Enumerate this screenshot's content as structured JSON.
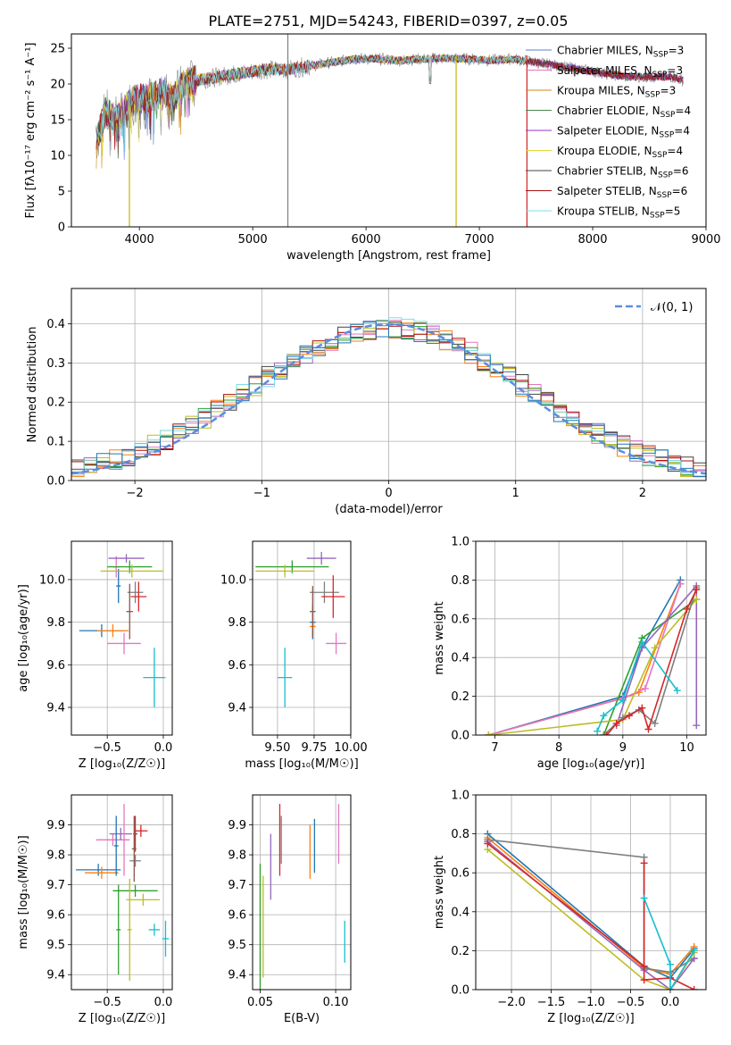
{
  "title": "PLATE=2751, MJD=54243, FIBERID=0397, z=0.05",
  "colors": {
    "blue": "#1f77b4",
    "orange": "#ff7f0e",
    "green": "#2ca02c",
    "red": "#d62728",
    "purple": "#9467bd",
    "brown": "#8c564b",
    "pink": "#e377c2",
    "gray": "#7f7f7f",
    "olive": "#bcbd22",
    "cyan": "#17becf"
  },
  "chart_data": [
    {
      "type": "line",
      "xlabel": "wavelength [Angstrom, rest frame]",
      "ylabel": "Flux [fλ10⁻¹⁷ erg cm⁻² s⁻¹ A⁻¹]",
      "xlim": [
        3400,
        9000
      ],
      "ylim": [
        0,
        27
      ],
      "xticks": [
        "4000",
        "5000",
        "6000",
        "7000",
        "8000",
        "9000"
      ],
      "yticks": [
        "0",
        "5",
        "10",
        "15",
        "20",
        "25"
      ],
      "legend": [
        {
          "text": "Chabrier MILES, N",
          "sub": "SSP",
          "suffix": "=3",
          "color": "#5b7fd6"
        },
        {
          "text": "Salpeter MILES, N",
          "sub": "SSP",
          "suffix": "=3",
          "color": "#e377c2"
        },
        {
          "text": "Kroupa MILES, N",
          "sub": "SSP",
          "suffix": "=3",
          "color": "#d08a15"
        },
        {
          "text": "Chabrier ELODIE, N",
          "sub": "SSP",
          "suffix": "=4",
          "color": "#4a8a4a"
        },
        {
          "text": "Salpeter ELODIE, N",
          "sub": "SSP",
          "suffix": "=4",
          "color": "#9933cc"
        },
        {
          "text": "Kroupa ELODIE, N",
          "sub": "SSP",
          "suffix": "=4",
          "color": "#e0d838"
        },
        {
          "text": "Chabrier STELIB, N",
          "sub": "SSP",
          "suffix": "=6",
          "color": "#444444"
        },
        {
          "text": "Salpeter STELIB, N",
          "sub": "SSP",
          "suffix": "=6",
          "color": "#aa1111"
        },
        {
          "text": "Kroupa STELIB, N",
          "sub": "SSP",
          "suffix": "=5",
          "color": "#80dde6"
        }
      ],
      "spectrum_envelope": [
        [
          3620,
          12
        ],
        [
          3700,
          16
        ],
        [
          3800,
          15
        ],
        [
          3900,
          17
        ],
        [
          4000,
          18
        ],
        [
          4100,
          18
        ],
        [
          4200,
          19
        ],
        [
          4300,
          18
        ],
        [
          4400,
          20
        ],
        [
          4500,
          20.5
        ],
        [
          4700,
          21
        ],
        [
          4900,
          21.5
        ],
        [
          5100,
          22
        ],
        [
          5300,
          22
        ],
        [
          5500,
          22.5
        ],
        [
          5700,
          23
        ],
        [
          5900,
          23.5
        ],
        [
          6100,
          23.5
        ],
        [
          6300,
          23.3
        ],
        [
          6500,
          23.5
        ],
        [
          6700,
          23.6
        ],
        [
          6900,
          23.5
        ],
        [
          7100,
          23.3
        ],
        [
          7300,
          23.5
        ],
        [
          7500,
          23
        ],
        [
          7700,
          22.5
        ],
        [
          7900,
          22
        ],
        [
          8100,
          21.5
        ],
        [
          8300,
          21
        ],
        [
          8500,
          21
        ],
        [
          8700,
          21
        ],
        [
          8800,
          20.5
        ]
      ]
    },
    {
      "type": "area",
      "xlabel": "(data-model)/error",
      "ylabel": "Normed distribution",
      "xlim": [
        -2.5,
        2.5
      ],
      "ylim": [
        0,
        0.49
      ],
      "xticks": [
        "−2",
        "−1",
        "0",
        "1",
        "2"
      ],
      "yticks": [
        "0.0",
        "0.1",
        "0.2",
        "0.3",
        "0.4"
      ],
      "legend_label": "𝒩(0, 1)",
      "bin_width": 0.1
    },
    {
      "type": "scatter",
      "xlabel": "Z [log₁₀(Z/Z☉)]",
      "ylabel": "age  [log₁₀(age/yr)]",
      "xlim": [
        -0.82,
        0.08
      ],
      "ylim": [
        9.27,
        10.18
      ],
      "xticks": [
        "−0.5",
        "0.0"
      ],
      "yticks": [
        "9.4",
        "9.6",
        "9.8",
        "10.0"
      ],
      "points": [
        {
          "x": -0.4,
          "y": 9.97,
          "xe": 0.02,
          "ye": 0.08,
          "c": "blue"
        },
        {
          "x": -0.55,
          "y": 9.76,
          "xe": 0.2,
          "ye": 0.03,
          "c": "blue"
        },
        {
          "x": -0.45,
          "y": 9.76,
          "xe": 0.14,
          "ye": 0.03,
          "c": "orange"
        },
        {
          "x": -0.42,
          "y": 10.06,
          "xe": 0.03,
          "ye": 0.05,
          "c": "pink"
        },
        {
          "x": -0.35,
          "y": 9.7,
          "xe": 0.15,
          "ye": 0.05,
          "c": "pink"
        },
        {
          "x": -0.3,
          "y": 10.06,
          "xe": 0.2,
          "ye": 0.03,
          "c": "green"
        },
        {
          "x": -0.33,
          "y": 10.1,
          "xe": 0.16,
          "ye": 0.02,
          "c": "purple"
        },
        {
          "x": -0.28,
          "y": 10.04,
          "xe": 0.28,
          "ye": 0.03,
          "c": "olive"
        },
        {
          "x": -0.25,
          "y": 9.94,
          "xe": 0.07,
          "ye": 0.05,
          "c": "gray"
        },
        {
          "x": -0.22,
          "y": 9.92,
          "xe": 0.07,
          "ye": 0.07,
          "c": "red"
        },
        {
          "x": -0.3,
          "y": 9.85,
          "xe": 0.03,
          "ye": 0.13,
          "c": "brown"
        },
        {
          "x": -0.08,
          "y": 9.54,
          "xe": 0.1,
          "ye": 0.14,
          "c": "cyan"
        }
      ]
    },
    {
      "type": "scatter",
      "xlabel": "mass [log₁₀(M/M☉)]",
      "xlim": [
        9.33,
        10.0
      ],
      "ylim": [
        9.27,
        10.18
      ],
      "xticks": [
        "9.50",
        "9.75",
        "10.00"
      ],
      "yticks": [
        "9.4",
        "9.6",
        "9.8",
        "10.0"
      ],
      "points": [
        {
          "x": 9.74,
          "y": 9.8,
          "xe": 0.02,
          "ye": 0.08,
          "c": "blue"
        },
        {
          "x": 9.74,
          "y": 9.78,
          "xe": 0.02,
          "ye": 0.04,
          "c": "orange"
        },
        {
          "x": 9.9,
          "y": 9.7,
          "xe": 0.07,
          "ye": 0.05,
          "c": "pink"
        },
        {
          "x": 9.6,
          "y": 10.06,
          "xe": 0.25,
          "ye": 0.03,
          "c": "green"
        },
        {
          "x": 9.8,
          "y": 10.1,
          "xe": 0.1,
          "ye": 0.03,
          "c": "purple"
        },
        {
          "x": 9.55,
          "y": 10.04,
          "xe": 0.2,
          "ye": 0.03,
          "c": "olive"
        },
        {
          "x": 9.82,
          "y": 9.94,
          "xe": 0.1,
          "ye": 0.05,
          "c": "gray"
        },
        {
          "x": 9.88,
          "y": 9.92,
          "xe": 0.08,
          "ye": 0.1,
          "c": "red"
        },
        {
          "x": 9.74,
          "y": 9.85,
          "xe": 0.02,
          "ye": 0.12,
          "c": "brown"
        },
        {
          "x": 9.55,
          "y": 9.54,
          "xe": 0.05,
          "ye": 0.14,
          "c": "cyan"
        }
      ]
    },
    {
      "type": "line",
      "xlabel": "age  [log₁₀(age/yr)]",
      "ylabel": "mass weight",
      "xlim": [
        6.7,
        10.3
      ],
      "ylim": [
        0,
        1.0
      ],
      "xticks": [
        "7",
        "8",
        "9",
        "10"
      ],
      "yticks": [
        "0.0",
        "0.2",
        "0.4",
        "0.6",
        "0.8",
        "1.0"
      ],
      "series": [
        {
          "c": "blue",
          "pts": [
            [
              6.9,
              0.0
            ],
            [
              9.0,
              0.2
            ],
            [
              9.3,
              0.45
            ],
            [
              9.9,
              0.8
            ]
          ]
        },
        {
          "c": "orange",
          "pts": [
            [
              6.9,
              0.0
            ],
            [
              9.0,
              0.19
            ],
            [
              9.25,
              0.22
            ],
            [
              9.9,
              0.78
            ]
          ]
        },
        {
          "c": "pink",
          "pts": [
            [
              6.9,
              0.0
            ],
            [
              9.0,
              0.19
            ],
            [
              9.35,
              0.24
            ],
            [
              9.9,
              0.78
            ]
          ]
        },
        {
          "c": "green",
          "pts": [
            [
              8.7,
              0.0
            ],
            [
              9.3,
              0.5
            ],
            [
              10.15,
              0.7
            ]
          ]
        },
        {
          "c": "purple",
          "pts": [
            [
              8.9,
              0.05
            ],
            [
              9.3,
              0.45
            ],
            [
              10.15,
              0.77
            ],
            [
              10.15,
              0.05
            ]
          ]
        },
        {
          "c": "olive",
          "pts": [
            [
              6.9,
              0.0
            ],
            [
              9.0,
              0.08
            ],
            [
              9.5,
              0.45
            ],
            [
              10.15,
              0.7
            ]
          ]
        },
        {
          "c": "gray",
          "pts": [
            [
              8.7,
              0.0
            ],
            [
              9.0,
              0.09
            ],
            [
              9.25,
              0.13
            ],
            [
              9.5,
              0.06
            ],
            [
              10.15,
              0.76
            ]
          ]
        },
        {
          "c": "red",
          "pts": [
            [
              8.75,
              0.0
            ],
            [
              8.9,
              0.06
            ],
            [
              9.1,
              0.1
            ],
            [
              9.3,
              0.14
            ],
            [
              9.4,
              0.03
            ],
            [
              10.0,
              0.65
            ],
            [
              10.15,
              0.75
            ]
          ]
        },
        {
          "c": "cyan",
          "pts": [
            [
              8.6,
              0.02
            ],
            [
              8.7,
              0.1
            ],
            [
              9.0,
              0.18
            ],
            [
              9.3,
              0.48
            ],
            [
              9.85,
              0.23
            ]
          ]
        }
      ]
    },
    {
      "type": "scatter",
      "xlabel": "Z [log₁₀(Z/Z☉)]",
      "ylabel": "mass [log₁₀(M/M☉)]",
      "xlim": [
        -0.82,
        0.08
      ],
      "ylim": [
        9.35,
        10.0
      ],
      "xticks": [
        "−0.5",
        "0.0"
      ],
      "yticks": [
        "9.4",
        "9.5",
        "9.6",
        "9.7",
        "9.8",
        "9.9"
      ],
      "points": [
        {
          "x": -0.58,
          "y": 9.75,
          "xe": 0.2,
          "ye": 0.02,
          "c": "blue"
        },
        {
          "x": -0.55,
          "y": 9.74,
          "xe": 0.15,
          "ye": 0.02,
          "c": "orange"
        },
        {
          "x": -0.45,
          "y": 9.85,
          "xe": 0.15,
          "ye": 0.02,
          "c": "pink"
        },
        {
          "x": -0.25,
          "y": 9.68,
          "xe": 0.2,
          "ye": 0.02,
          "c": "green"
        },
        {
          "x": -0.38,
          "y": 9.87,
          "xe": 0.1,
          "ye": 0.02,
          "c": "purple"
        },
        {
          "x": -0.18,
          "y": 9.65,
          "xe": 0.15,
          "ye": 0.02,
          "c": "olive"
        },
        {
          "x": -0.25,
          "y": 9.78,
          "xe": 0.05,
          "ye": 0.02,
          "c": "gray"
        },
        {
          "x": -0.2,
          "y": 9.88,
          "xe": 0.06,
          "ye": 0.02,
          "c": "red"
        },
        {
          "x": -0.42,
          "y": 9.83,
          "xe": 0.02,
          "ye": 0.1,
          "c": "blue"
        },
        {
          "x": -0.4,
          "y": 9.55,
          "xe": 0.02,
          "ye": 0.15,
          "c": "green"
        },
        {
          "x": -0.35,
          "y": 9.85,
          "xe": 0.02,
          "ye": 0.12,
          "c": "pink"
        },
        {
          "x": -0.3,
          "y": 9.55,
          "xe": 0.02,
          "ye": 0.17,
          "c": "olive"
        },
        {
          "x": -0.25,
          "y": 9.87,
          "xe": 0.02,
          "ye": 0.06,
          "c": "red"
        },
        {
          "x": -0.26,
          "y": 9.82,
          "xe": 0.02,
          "ye": 0.11,
          "c": "brown"
        },
        {
          "x": 0.02,
          "y": 9.52,
          "xe": 0.03,
          "ye": 0.06,
          "c": "cyan"
        },
        {
          "x": -0.08,
          "y": 9.55,
          "xe": 0.05,
          "ye": 0.02,
          "c": "cyan"
        }
      ]
    },
    {
      "type": "scatter",
      "xlabel": "E(B-V)",
      "xlim": [
        0.045,
        0.11
      ],
      "ylim": [
        9.35,
        10.0
      ],
      "xticks": [
        "0.05",
        "0.10"
      ],
      "yticks": [
        "9.4",
        "9.5",
        "9.6",
        "9.7",
        "9.8",
        "9.9"
      ],
      "points": [
        {
          "x": 0.05,
          "y": 9.55,
          "ye": 0.22,
          "c": "green"
        },
        {
          "x": 0.052,
          "y": 9.56,
          "ye": 0.17,
          "c": "olive"
        },
        {
          "x": 0.057,
          "y": 9.76,
          "ye": 0.11,
          "c": "purple"
        },
        {
          "x": 0.063,
          "y": 9.85,
          "ye": 0.12,
          "c": "red"
        },
        {
          "x": 0.064,
          "y": 9.85,
          "ye": 0.08,
          "c": "gray"
        },
        {
          "x": 0.083,
          "y": 9.81,
          "ye": 0.09,
          "c": "orange"
        },
        {
          "x": 0.086,
          "y": 9.83,
          "ye": 0.09,
          "c": "blue"
        },
        {
          "x": 0.102,
          "y": 9.87,
          "ye": 0.1,
          "c": "pink"
        },
        {
          "x": 0.106,
          "y": 9.51,
          "ye": 0.07,
          "c": "cyan"
        }
      ]
    },
    {
      "type": "line",
      "xlabel": "Z [log₁₀(Z/Z☉)]",
      "ylabel": "mass weight",
      "xlim": [
        -2.45,
        0.45
      ],
      "ylim": [
        0,
        1.0
      ],
      "xticks": [
        "−2.0",
        "−1.5",
        "−1.0",
        "−0.5",
        "0.0"
      ],
      "yticks": [
        "0.0",
        "0.2",
        "0.4",
        "0.6",
        "0.8",
        "1.0"
      ],
      "series": [
        {
          "c": "blue",
          "pts": [
            [
              -2.3,
              0.8
            ],
            [
              -0.33,
              0.12
            ],
            [
              0.0,
              0.06
            ],
            [
              0.3,
              0.21
            ]
          ]
        },
        {
          "c": "orange",
          "pts": [
            [
              -2.3,
              0.78
            ],
            [
              -0.33,
              0.11
            ],
            [
              0.0,
              0.08
            ],
            [
              0.3,
              0.22
            ]
          ]
        },
        {
          "c": "gray",
          "pts": [
            [
              -2.3,
              0.77
            ],
            [
              -0.33,
              0.68
            ],
            [
              -0.33,
              0.11
            ],
            [
              0.0,
              0.09
            ],
            [
              0.3,
              0.16
            ]
          ]
        },
        {
          "c": "purple",
          "pts": [
            [
              -2.3,
              0.76
            ],
            [
              -0.33,
              0.1
            ],
            [
              0.0,
              0.0
            ],
            [
              0.3,
              0.16
            ]
          ]
        },
        {
          "c": "olive",
          "pts": [
            [
              -2.3,
              0.72
            ],
            [
              -0.33,
              0.05
            ],
            [
              0.0,
              0.0
            ],
            [
              0.3,
              0.19
            ]
          ]
        },
        {
          "c": "red",
          "pts": [
            [
              -2.3,
              0.75
            ],
            [
              -0.33,
              0.12
            ],
            [
              -0.33,
              0.65
            ],
            [
              -0.33,
              0.05
            ],
            [
              0.0,
              0.06
            ],
            [
              0.3,
              0.0
            ]
          ]
        },
        {
          "c": "cyan",
          "pts": [
            [
              -0.33,
              0.47
            ],
            [
              0.0,
              0.13
            ],
            [
              0.0,
              0.0
            ],
            [
              0.3,
              0.2
            ]
          ]
        }
      ]
    }
  ]
}
